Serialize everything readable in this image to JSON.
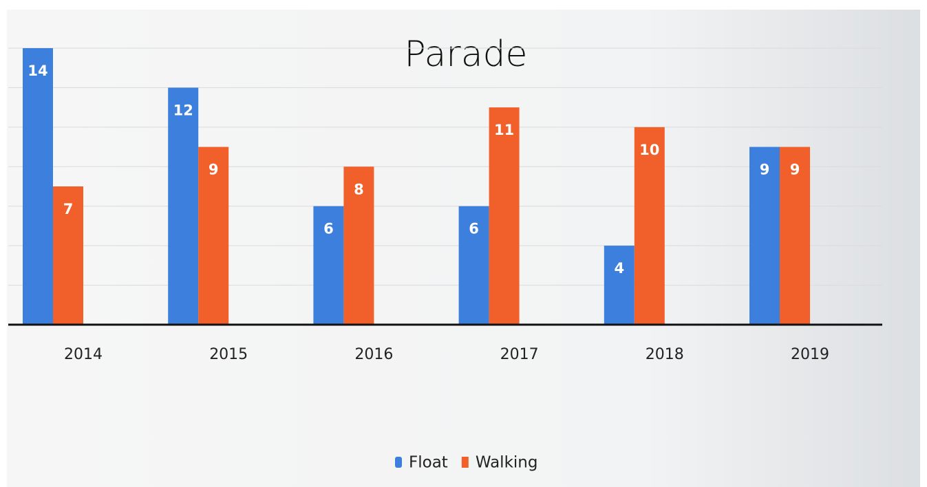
{
  "chart_data": {
    "type": "bar",
    "title": "Parade",
    "categories": [
      "2014",
      "2015",
      "2016",
      "2017",
      "2018",
      "2019"
    ],
    "series": [
      {
        "name": "Float",
        "color": "#3d7fdc",
        "values": [
          14,
          12,
          6,
          6,
          4,
          9
        ]
      },
      {
        "name": "Walking",
        "color": "#f1602b",
        "values": [
          7,
          9,
          8,
          11,
          10,
          9
        ]
      }
    ],
    "ylim": [
      0,
      14
    ],
    "yticks": [
      0,
      2,
      4,
      6,
      8,
      10,
      12,
      14
    ],
    "grid": true,
    "legend": "bottom"
  }
}
